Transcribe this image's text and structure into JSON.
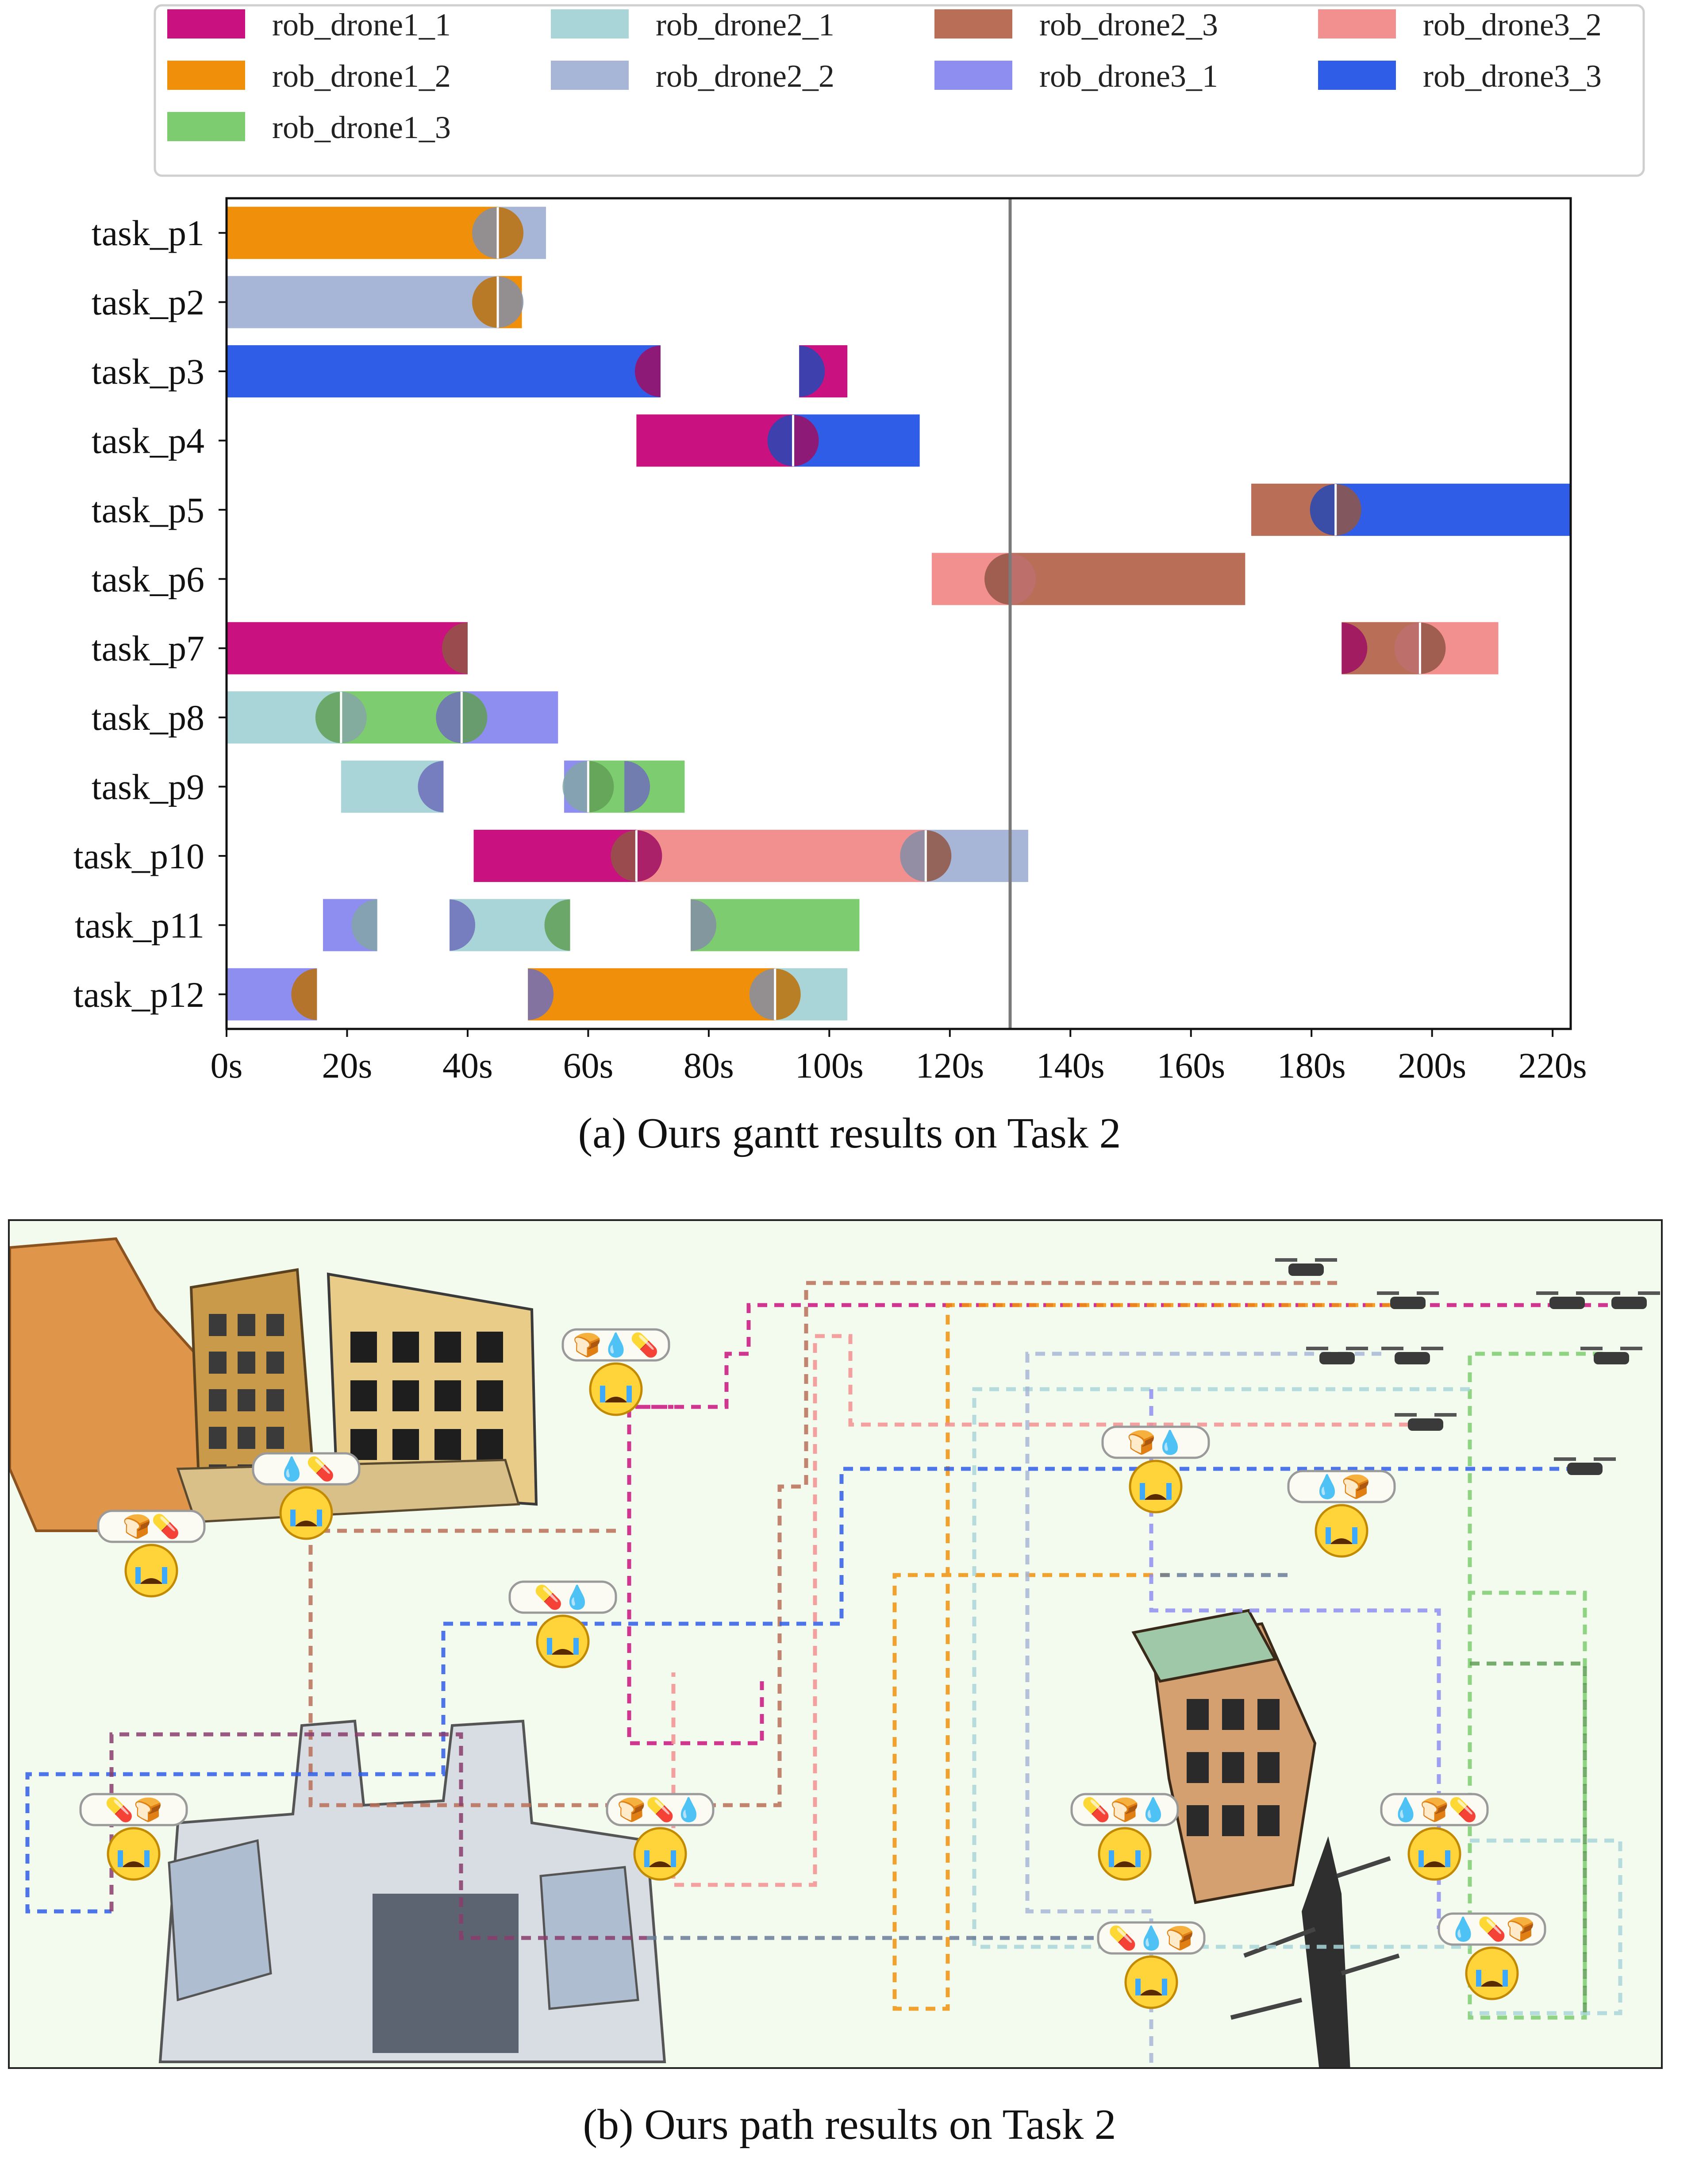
{
  "captions": {
    "a": "(a) Ours gantt results on Task 2",
    "b": "(b) Ours path results on Task 2"
  },
  "chart_data": {
    "type": "gantt",
    "x_ticks": [
      "0s",
      "20s",
      "40s",
      "60s",
      "80s",
      "100s",
      "120s",
      "140s",
      "160s",
      "180s",
      "200s",
      "220s"
    ],
    "xlim": [
      0,
      223
    ],
    "vline_x": 130,
    "legend_placement": "top",
    "series": [
      {
        "name": "rob_drone1_1",
        "color": "#c9127f"
      },
      {
        "name": "rob_drone1_2",
        "color": "#f0900a"
      },
      {
        "name": "rob_drone1_3",
        "color": "#7dcc6f"
      },
      {
        "name": "rob_drone2_1",
        "color": "#a9d5d8"
      },
      {
        "name": "rob_drone2_2",
        "color": "#a7b6d6"
      },
      {
        "name": "rob_drone2_3",
        "color": "#b86e57"
      },
      {
        "name": "rob_drone3_1",
        "color": "#8e8ef0"
      },
      {
        "name": "rob_drone3_2",
        "color": "#f29090"
      },
      {
        "name": "rob_drone3_3",
        "color": "#2f5de8"
      }
    ],
    "tasks": [
      "task_p1",
      "task_p2",
      "task_p3",
      "task_p4",
      "task_p5",
      "task_p6",
      "task_p7",
      "task_p8",
      "task_p9",
      "task_p10",
      "task_p11",
      "task_p12"
    ],
    "bars": [
      {
        "task": 0,
        "series": 1,
        "start": 0,
        "end": 45
      },
      {
        "task": 0,
        "series": 4,
        "start": 45,
        "end": 53
      },
      {
        "task": 1,
        "series": 4,
        "start": 0,
        "end": 45
      },
      {
        "task": 1,
        "series": 1,
        "start": 45,
        "end": 49
      },
      {
        "task": 2,
        "series": 8,
        "start": 0,
        "end": 72
      },
      {
        "task": 2,
        "series": 0,
        "start": 95,
        "end": 103
      },
      {
        "task": 3,
        "series": 0,
        "start": 68,
        "end": 94
      },
      {
        "task": 3,
        "series": 8,
        "start": 94,
        "end": 115
      },
      {
        "task": 4,
        "series": 5,
        "start": 170,
        "end": 184
      },
      {
        "task": 4,
        "series": 8,
        "start": 184,
        "end": 223
      },
      {
        "task": 5,
        "series": 7,
        "start": 117,
        "end": 130
      },
      {
        "task": 5,
        "series": 5,
        "start": 130,
        "end": 169
      },
      {
        "task": 6,
        "series": 0,
        "start": 0,
        "end": 40
      },
      {
        "task": 6,
        "series": 5,
        "start": 185,
        "end": 198
      },
      {
        "task": 6,
        "series": 7,
        "start": 198,
        "end": 211
      },
      {
        "task": 7,
        "series": 3,
        "start": 0,
        "end": 19
      },
      {
        "task": 7,
        "series": 2,
        "start": 19,
        "end": 39
      },
      {
        "task": 7,
        "series": 6,
        "start": 39,
        "end": 55
      },
      {
        "task": 8,
        "series": 3,
        "start": 19,
        "end": 36
      },
      {
        "task": 8,
        "series": 6,
        "start": 56,
        "end": 60
      },
      {
        "task": 8,
        "series": 2,
        "start": 60,
        "end": 76
      },
      {
        "task": 9,
        "series": 0,
        "start": 41,
        "end": 68
      },
      {
        "task": 9,
        "series": 7,
        "start": 68,
        "end": 116
      },
      {
        "task": 9,
        "series": 4,
        "start": 116,
        "end": 133
      },
      {
        "task": 10,
        "series": 6,
        "start": 16,
        "end": 25
      },
      {
        "task": 10,
        "series": 3,
        "start": 37,
        "end": 57
      },
      {
        "task": 10,
        "series": 2,
        "start": 77,
        "end": 105
      },
      {
        "task": 11,
        "series": 6,
        "start": 0,
        "end": 15
      },
      {
        "task": 11,
        "series": 1,
        "start": 50,
        "end": 91
      },
      {
        "task": 11,
        "series": 3,
        "start": 91,
        "end": 103
      }
    ],
    "markers": [
      {
        "task": 0,
        "x": 45,
        "left": 4,
        "right": 1
      },
      {
        "task": 1,
        "x": 45,
        "left": 1,
        "right": 4
      },
      {
        "task": 2,
        "x": 72,
        "left": 0,
        "right": null
      },
      {
        "task": 2,
        "x": 95,
        "left": null,
        "right": 8
      },
      {
        "task": 3,
        "x": 94,
        "left": 8,
        "right": 0
      },
      {
        "task": 4,
        "x": 184,
        "left": 8,
        "right": 5
      },
      {
        "task": 5,
        "x": 130,
        "left": 5,
        "right": 7
      },
      {
        "task": 6,
        "x": 40,
        "left": 5,
        "right": null
      },
      {
        "task": 6,
        "x": 185,
        "left": null,
        "right": 0
      },
      {
        "task": 6,
        "x": 198,
        "left": 7,
        "right": 5
      },
      {
        "task": 7,
        "x": 19,
        "left": 2,
        "right": 3
      },
      {
        "task": 7,
        "x": 39,
        "left": 6,
        "right": 2
      },
      {
        "task": 8,
        "x": 36,
        "left": 6,
        "right": null
      },
      {
        "task": 8,
        "x": 60,
        "left": 3,
        "right": 2
      },
      {
        "task": 8,
        "x": 66,
        "left": null,
        "right": 6
      },
      {
        "task": 9,
        "x": 68,
        "left": 5,
        "right": 0
      },
      {
        "task": 9,
        "x": 116,
        "left": 4,
        "right": 5
      },
      {
        "task": 10,
        "x": 25,
        "left": 3,
        "right": null
      },
      {
        "task": 10,
        "x": 37,
        "left": null,
        "right": 6
      },
      {
        "task": 10,
        "x": 57,
        "left": 2,
        "right": null
      },
      {
        "task": 10,
        "x": 77,
        "left": null,
        "right": 4
      },
      {
        "task": 11,
        "x": 15,
        "left": 1,
        "right": null
      },
      {
        "task": 11,
        "x": 50,
        "left": null,
        "right": 6
      },
      {
        "task": 11,
        "x": 91,
        "left": 4,
        "right": 1
      }
    ]
  },
  "path_map": {
    "victim_icon": "crying-face",
    "victims": [
      {
        "needs": "🍞💧💊"
      },
      {
        "needs": "💧💊"
      },
      {
        "needs": "🍞💊"
      },
      {
        "needs": "💊💧"
      },
      {
        "needs": "💊🍞"
      },
      {
        "needs": "🍞💊💧"
      },
      {
        "needs": "💊🍞💧"
      },
      {
        "needs": "💊💧🍞"
      },
      {
        "needs": "🍞💧"
      },
      {
        "needs": "💧🍞"
      },
      {
        "needs": "💧🍞💊"
      },
      {
        "needs": "💧💊🍞"
      }
    ]
  }
}
